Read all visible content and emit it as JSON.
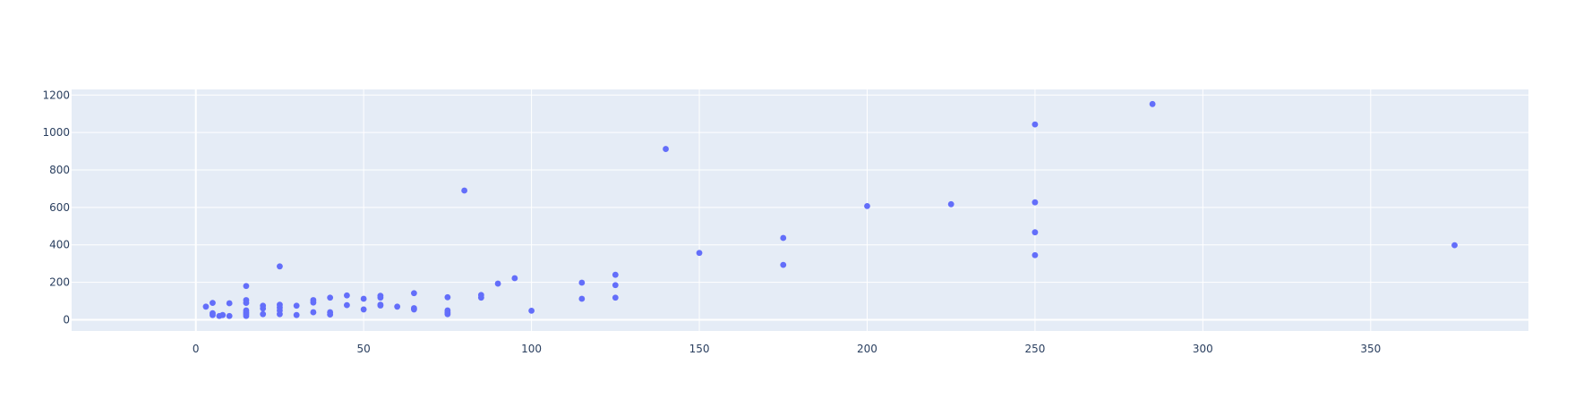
{
  "chart_data": {
    "type": "scatter",
    "title": "",
    "xlabel": "",
    "ylabel": "",
    "xlim": [
      -37,
      397
    ],
    "ylim": [
      -60,
      1230
    ],
    "x_ticks": [
      0,
      50,
      100,
      150,
      200,
      250,
      300,
      350
    ],
    "y_ticks": [
      0,
      200,
      400,
      600,
      800,
      1000,
      1200
    ],
    "grid": true,
    "legend": "none",
    "colors": {
      "plot_background": "#e5ecf6",
      "grid": "#ffffff",
      "marker": "#636efa",
      "text": "#2a3f5f"
    },
    "series": [
      {
        "points": [
          [
            3,
            70
          ],
          [
            5,
            90
          ],
          [
            5,
            35
          ],
          [
            5,
            25
          ],
          [
            7,
            20
          ],
          [
            8,
            25
          ],
          [
            10,
            88
          ],
          [
            10,
            20
          ],
          [
            15,
            180
          ],
          [
            15,
            105
          ],
          [
            15,
            90
          ],
          [
            15,
            50
          ],
          [
            15,
            40
          ],
          [
            15,
            30
          ],
          [
            15,
            20
          ],
          [
            20,
            75
          ],
          [
            20,
            60
          ],
          [
            20,
            30
          ],
          [
            25,
            285
          ],
          [
            25,
            80
          ],
          [
            25,
            65
          ],
          [
            25,
            50
          ],
          [
            25,
            30
          ],
          [
            30,
            75
          ],
          [
            30,
            25
          ],
          [
            35,
            105
          ],
          [
            35,
            92
          ],
          [
            35,
            40
          ],
          [
            40,
            118
          ],
          [
            40,
            40
          ],
          [
            40,
            28
          ],
          [
            45,
            130
          ],
          [
            45,
            78
          ],
          [
            50,
            112
          ],
          [
            50,
            55
          ],
          [
            55,
            128
          ],
          [
            55,
            118
          ],
          [
            55,
            80
          ],
          [
            55,
            76
          ],
          [
            60,
            70
          ],
          [
            65,
            142
          ],
          [
            65,
            62
          ],
          [
            65,
            55
          ],
          [
            75,
            120
          ],
          [
            75,
            50
          ],
          [
            75,
            40
          ],
          [
            75,
            30
          ],
          [
            80,
            690
          ],
          [
            85,
            132
          ],
          [
            85,
            118
          ],
          [
            90,
            193
          ],
          [
            95,
            222
          ],
          [
            100,
            48
          ],
          [
            115,
            198
          ],
          [
            115,
            112
          ],
          [
            125,
            240
          ],
          [
            125,
            185
          ],
          [
            125,
            118
          ],
          [
            140,
            912
          ],
          [
            150,
            357
          ],
          [
            175,
            437
          ],
          [
            175,
            293
          ],
          [
            200,
            607
          ],
          [
            225,
            617
          ],
          [
            250,
            1043
          ],
          [
            250,
            627
          ],
          [
            250,
            467
          ],
          [
            250,
            345
          ],
          [
            285,
            1152
          ],
          [
            375,
            398
          ]
        ]
      }
    ]
  }
}
